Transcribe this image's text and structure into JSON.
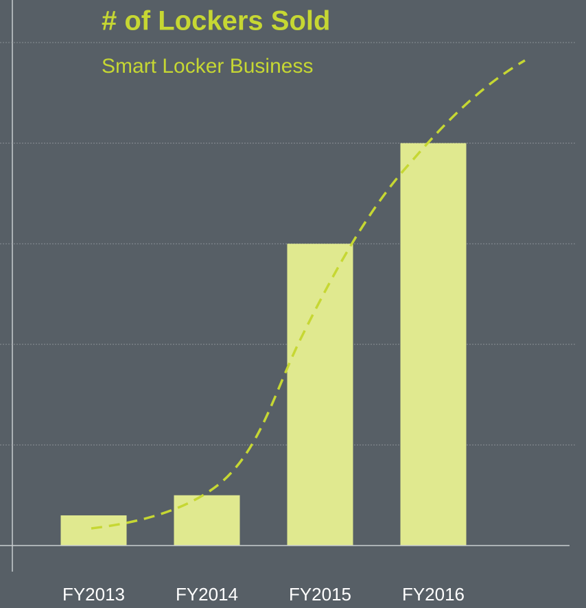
{
  "chart_data": {
    "type": "bar",
    "title": "# of Lockers Sold",
    "subtitle": "Smart Locker Business",
    "categories": [
      "FY2013",
      "FY2014",
      "FY2015",
      "FY2016"
    ],
    "values": [
      0.3,
      0.5,
      3,
      4
    ],
    "color": "#e0e98f",
    "ylim": [
      0,
      5
    ],
    "yticks": [
      1,
      2,
      3,
      4,
      5
    ],
    "grid": true
  }
}
